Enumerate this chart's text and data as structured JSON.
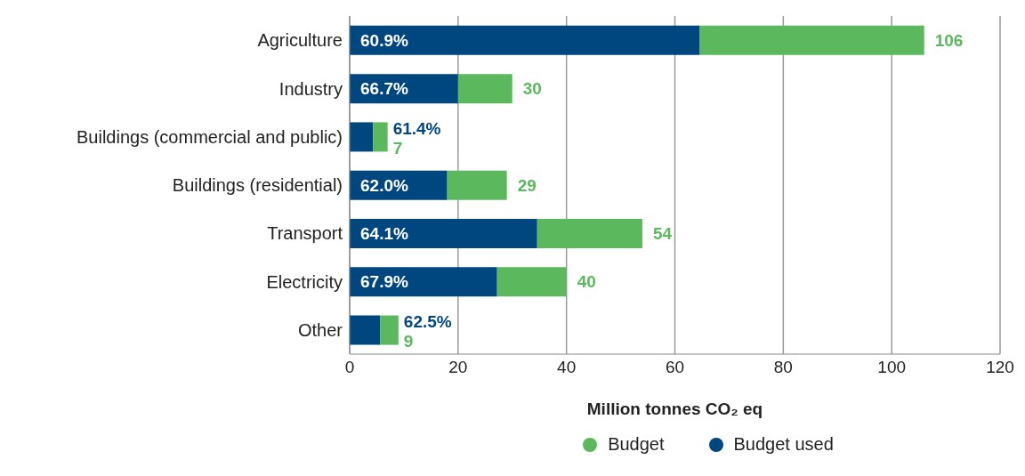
{
  "chart_data": {
    "type": "bar",
    "orientation": "horizontal",
    "stacked": true,
    "xlabel": "Million tonnes CO₂ eq",
    "categories": [
      "Agriculture",
      "Industry",
      "Buildings (commercial and public)",
      "Buildings (residential)",
      "Transport",
      "Electricity",
      "Other"
    ],
    "series": [
      {
        "name": "Budget used",
        "color": "#00467f",
        "values": [
          64.6,
          20.0,
          4.3,
          18.0,
          34.6,
          27.2,
          5.6
        ]
      },
      {
        "name": "Budget",
        "color": "#5cb85c",
        "values": [
          41.4,
          10.0,
          2.7,
          11.0,
          19.4,
          12.8,
          3.4
        ]
      }
    ],
    "annotations": [
      "60.9%",
      "66.7%",
      "61.4%",
      "62.0%",
      "64.1%",
      "67.9%",
      "62.5%"
    ],
    "totals": [
      "106",
      "30",
      "7",
      "29",
      "54",
      "40",
      "9"
    ],
    "xlim": [
      0,
      120
    ],
    "xticks": [
      0,
      20,
      40,
      60,
      80,
      100,
      120
    ],
    "grid": "x",
    "legend": "bottom"
  }
}
